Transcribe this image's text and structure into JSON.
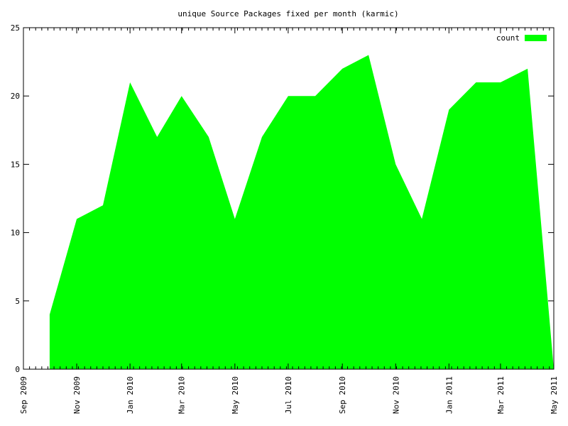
{
  "chart_data": {
    "type": "area",
    "title": "unique Source Packages fixed per month (karmic)",
    "xlabel": "",
    "ylabel": "",
    "xlim": [
      "2009-09-01",
      "2011-05-01"
    ],
    "ylim": [
      0,
      25
    ],
    "yticks": [
      0,
      5,
      10,
      15,
      20,
      25
    ],
    "xticks": [
      {
        "date": "2009-09-01",
        "label": "Sep 2009"
      },
      {
        "date": "2009-11-01",
        "label": "Nov 2009"
      },
      {
        "date": "2010-01-01",
        "label": "Jan 2010"
      },
      {
        "date": "2010-03-01",
        "label": "Mar 2010"
      },
      {
        "date": "2010-05-01",
        "label": "May 2010"
      },
      {
        "date": "2010-07-01",
        "label": "Jul 2010"
      },
      {
        "date": "2010-09-01",
        "label": "Sep 2010"
      },
      {
        "date": "2010-11-01",
        "label": "Nov 2010"
      },
      {
        "date": "2011-01-01",
        "label": "Jan 2011"
      },
      {
        "date": "2011-03-01",
        "label": "Mar 2011"
      },
      {
        "date": "2011-05-01",
        "label": "May 2011"
      }
    ],
    "legend": {
      "position": "top-right"
    },
    "grid": false,
    "series": [
      {
        "name": "count",
        "color": "#00ff00",
        "x": [
          "2009-10-01",
          "2009-11-01",
          "2009-12-01",
          "2010-01-01",
          "2010-02-01",
          "2010-03-01",
          "2010-04-01",
          "2010-05-01",
          "2010-06-01",
          "2010-07-01",
          "2010-08-01",
          "2010-09-01",
          "2010-10-01",
          "2010-11-01",
          "2010-12-01",
          "2011-01-01",
          "2011-02-01",
          "2011-03-01",
          "2011-04-01",
          "2011-05-01"
        ],
        "y": [
          4,
          11,
          12,
          21,
          17,
          20,
          17,
          11,
          17,
          20,
          20,
          22,
          23,
          15,
          11,
          19,
          21,
          21,
          22,
          0
        ]
      }
    ]
  }
}
